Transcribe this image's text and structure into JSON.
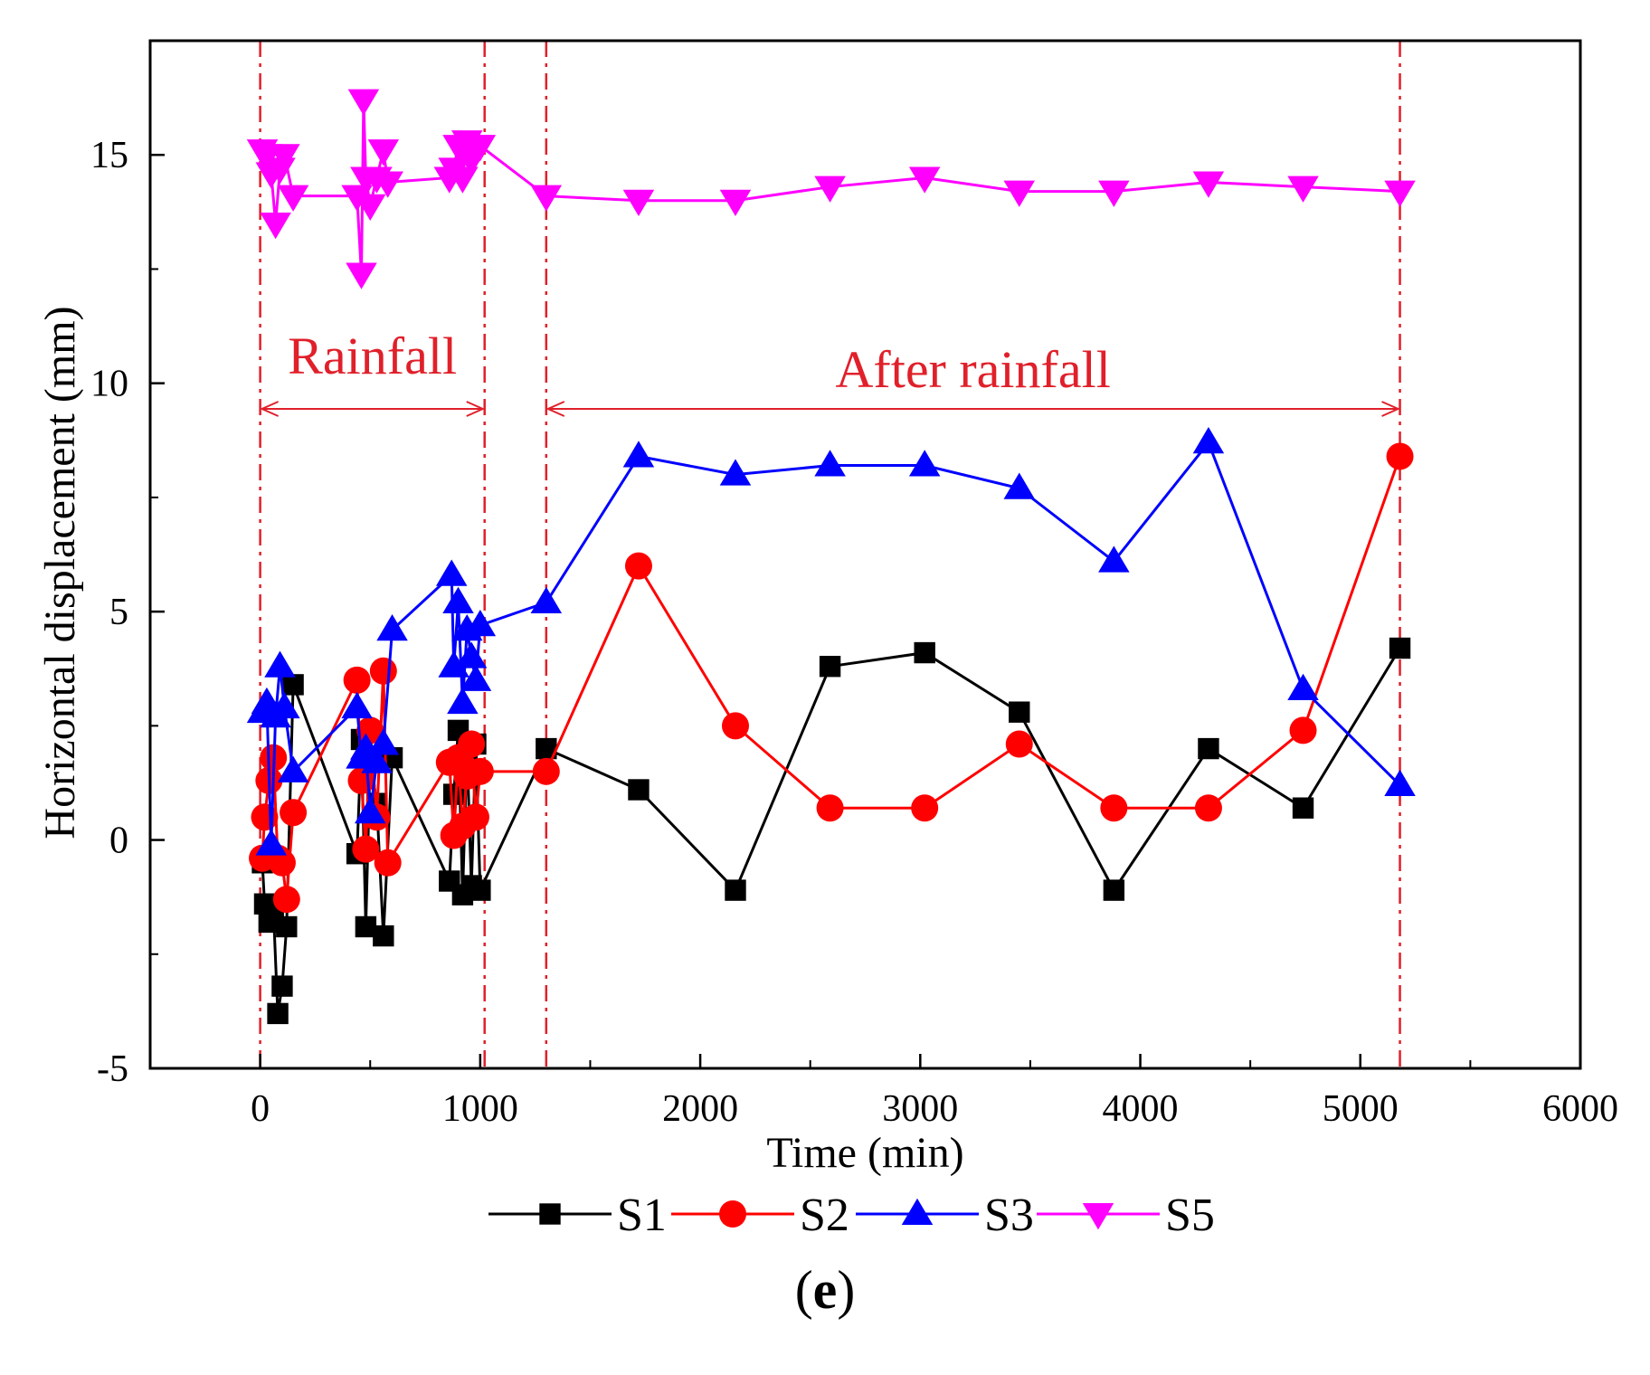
{
  "chart_data": {
    "type": "line",
    "title": "",
    "xlabel": "Time (min)",
    "ylabel": "Horizontal displacement (mm)",
    "xlim": [
      -500,
      6000
    ],
    "ylim": [
      -5,
      17.5
    ],
    "x_ticks": [
      0,
      1000,
      2000,
      3000,
      4000,
      5000,
      6000
    ],
    "y_ticks": [
      -5,
      0,
      5,
      10,
      15
    ],
    "grid": false,
    "legend": "bottom",
    "annotations": {
      "rainfall": {
        "text": "Rainfall",
        "range": [
          0,
          1020
        ]
      },
      "after_rainfall": {
        "text": "After rainfall",
        "range": [
          1300,
          5180
        ]
      }
    },
    "vlines": [
      0,
      1020,
      1300,
      5180
    ],
    "series": [
      {
        "name": "S1",
        "color": "#000000",
        "marker": "square",
        "x": [
          10,
          20,
          40,
          60,
          80,
          100,
          120,
          150,
          440,
          460,
          480,
          500,
          530,
          560,
          600,
          860,
          880,
          900,
          920,
          940,
          960,
          980,
          1000,
          1300,
          1720,
          2160,
          2590,
          3020,
          3450,
          3880,
          4310,
          4740,
          5180
        ],
        "y": [
          -0.5,
          -1.4,
          -1.8,
          -1.5,
          -3.8,
          -3.2,
          -1.9,
          3.4,
          -0.3,
          2.2,
          -1.9,
          1.8,
          0.8,
          -2.1,
          1.8,
          -0.9,
          1.0,
          2.4,
          -1.2,
          2.0,
          -1.0,
          2.1,
          -1.1,
          2.0,
          1.1,
          -1.1,
          3.8,
          4.1,
          2.8,
          -1.1,
          2.0,
          0.7,
          4.2
        ]
      },
      {
        "name": "S2",
        "color": "#ff0000",
        "marker": "circle",
        "x": [
          10,
          20,
          40,
          60,
          80,
          100,
          120,
          150,
          440,
          460,
          480,
          500,
          530,
          560,
          580,
          860,
          880,
          900,
          920,
          940,
          960,
          980,
          1000,
          1300,
          1720,
          2160,
          2590,
          3020,
          3450,
          3880,
          4310,
          4740,
          5180
        ],
        "y": [
          -0.4,
          0.5,
          1.3,
          1.8,
          -0.4,
          -0.5,
          -1.3,
          0.6,
          3.5,
          1.3,
          -0.2,
          2.4,
          0.5,
          3.7,
          -0.5,
          1.7,
          0.1,
          1.8,
          0.3,
          1.4,
          2.1,
          0.5,
          1.5,
          1.5,
          6.0,
          2.5,
          0.7,
          0.7,
          2.1,
          0.7,
          0.7,
          2.4,
          8.4
        ]
      },
      {
        "name": "S3",
        "color": "#0000ff",
        "marker": "triangle-up",
        "x": [
          10,
          30,
          50,
          70,
          90,
          110,
          150,
          440,
          460,
          480,
          500,
          530,
          560,
          600,
          870,
          880,
          900,
          920,
          940,
          960,
          980,
          1000,
          1300,
          1720,
          2160,
          2590,
          3020,
          3450,
          3880,
          4310,
          4740,
          5180
        ],
        "y": [
          2.8,
          3.0,
          -0.1,
          2.7,
          3.8,
          2.9,
          1.5,
          2.9,
          1.8,
          2.0,
          0.6,
          1.7,
          2.1,
          4.6,
          5.8,
          3.8,
          5.2,
          3.0,
          4.6,
          4.0,
          3.5,
          4.7,
          5.2,
          8.4,
          8.0,
          8.2,
          8.2,
          7.7,
          6.1,
          8.7,
          3.3,
          1.2
        ]
      },
      {
        "name": "S5",
        "color": "#ff00ff",
        "marker": "triangle-down",
        "x": [
          10,
          30,
          50,
          70,
          90,
          110,
          150,
          440,
          460,
          470,
          480,
          500,
          530,
          560,
          580,
          860,
          880,
          900,
          920,
          940,
          960,
          980,
          1000,
          1300,
          1720,
          2160,
          2590,
          3020,
          3450,
          3880,
          4310,
          4740,
          5180
        ],
        "y": [
          15.1,
          15.0,
          14.6,
          13.5,
          14.7,
          15.0,
          14.1,
          14.1,
          12.4,
          16.2,
          14.5,
          13.9,
          14.5,
          15.1,
          14.4,
          14.5,
          14.7,
          15.2,
          14.5,
          15.3,
          14.9,
          15.2,
          15.2,
          14.1,
          14.0,
          14.0,
          14.3,
          14.5,
          14.2,
          14.2,
          14.4,
          14.3,
          14.2
        ]
      }
    ]
  },
  "panel_label": "e"
}
